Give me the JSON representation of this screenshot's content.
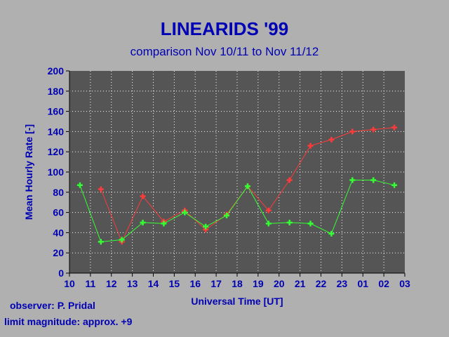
{
  "chart_data": {
    "type": "line",
    "title": "LINEARIDS '99",
    "subtitle": "comparison Nov 10/11 to Nov 11/12",
    "xlabel": "Universal Time [UT]",
    "ylabel": "Mean Hourly Rate [-]",
    "ylim": [
      0,
      200
    ],
    "yticks": [
      0,
      20,
      40,
      60,
      80,
      100,
      120,
      140,
      160,
      180,
      200
    ],
    "xtick_labels": [
      "10",
      "11",
      "12",
      "13",
      "14",
      "15",
      "16",
      "17",
      "18",
      "19",
      "20",
      "21",
      "22",
      "23",
      "01",
      "02",
      "03"
    ],
    "grid": true,
    "series": [
      {
        "color": "#ff3a3a",
        "x": [
          11.5,
          12.5,
          13.5,
          14.5,
          15.5,
          16.5,
          17.5,
          18.5,
          19.5,
          20.5,
          21.5,
          22.5,
          23.5,
          24.5,
          25.5
        ],
        "values": [
          83,
          31,
          76,
          51,
          62,
          43,
          58,
          86,
          62,
          92,
          126,
          132,
          140,
          142,
          144
        ]
      },
      {
        "color": "#33ff33",
        "x": [
          10.5,
          11.5,
          12.5,
          13.5,
          14.5,
          15.5,
          16.5,
          17.5,
          18.5,
          19.5,
          20.5,
          21.5,
          22.5,
          23.5,
          24.5,
          25.5
        ],
        "values": [
          87,
          31,
          33,
          50,
          49,
          60,
          46,
          57,
          86,
          49,
          50,
          49,
          39,
          92,
          92,
          87
        ]
      }
    ]
  },
  "footer": {
    "observer": "observer: P. Pridal",
    "limit": "limit magnitude: approx. +9"
  },
  "colors": {
    "plot_bg": "#555555",
    "text": "#0000b4",
    "page_bg": "#b0b0b0"
  }
}
